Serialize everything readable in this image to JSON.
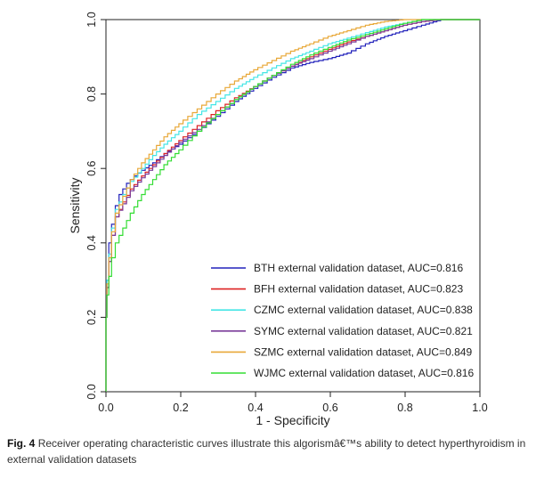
{
  "caption": {
    "label": "Fig. 4",
    "text": "Receiver operating characteristic curves illustrate this algorismâ€™s ability to detect hyperthyroidism in external validation datasets"
  },
  "chart_data": {
    "type": "line",
    "title": "",
    "xlabel": "1 - Specificity",
    "ylabel": "Sensitivity",
    "xlim": [
      0,
      1
    ],
    "ylim": [
      0,
      1
    ],
    "x_ticks": [
      "0.0",
      "0.2",
      "0.4",
      "0.6",
      "0.8",
      "1.0"
    ],
    "y_ticks": [
      "0.0",
      "0.2",
      "0.4",
      "0.6",
      "0.8",
      "1.0"
    ],
    "grid": false,
    "legend_position": "bottom-right",
    "diagonal": false,
    "series": [
      {
        "name": "BTH external validation dataset, AUC=0.816",
        "color": "#2222bb",
        "points": [
          [
            0,
            0
          ],
          [
            0,
            0.2
          ],
          [
            0.005,
            0.3
          ],
          [
            0.01,
            0.4
          ],
          [
            0.02,
            0.45
          ],
          [
            0.03,
            0.5
          ],
          [
            0.04,
            0.53
          ],
          [
            0.06,
            0.56
          ],
          [
            0.08,
            0.58
          ],
          [
            0.1,
            0.595
          ],
          [
            0.13,
            0.615
          ],
          [
            0.16,
            0.64
          ],
          [
            0.2,
            0.665
          ],
          [
            0.25,
            0.7
          ],
          [
            0.3,
            0.74
          ],
          [
            0.35,
            0.78
          ],
          [
            0.4,
            0.815
          ],
          [
            0.45,
            0.845
          ],
          [
            0.5,
            0.87
          ],
          [
            0.55,
            0.885
          ],
          [
            0.6,
            0.895
          ],
          [
            0.65,
            0.91
          ],
          [
            0.7,
            0.935
          ],
          [
            0.75,
            0.955
          ],
          [
            0.8,
            0.97
          ],
          [
            0.85,
            0.985
          ],
          [
            0.9,
            1.0
          ],
          [
            1.0,
            1.0
          ]
        ]
      },
      {
        "name": "BFH external validation dataset, AUC=0.823",
        "color": "#dd2222",
        "points": [
          [
            0,
            0
          ],
          [
            0,
            0.2
          ],
          [
            0.005,
            0.28
          ],
          [
            0.01,
            0.35
          ],
          [
            0.02,
            0.42
          ],
          [
            0.03,
            0.47
          ],
          [
            0.05,
            0.51
          ],
          [
            0.07,
            0.545
          ],
          [
            0.1,
            0.58
          ],
          [
            0.13,
            0.61
          ],
          [
            0.16,
            0.64
          ],
          [
            0.2,
            0.675
          ],
          [
            0.25,
            0.715
          ],
          [
            0.3,
            0.755
          ],
          [
            0.35,
            0.79
          ],
          [
            0.4,
            0.82
          ],
          [
            0.45,
            0.85
          ],
          [
            0.5,
            0.875
          ],
          [
            0.55,
            0.9
          ],
          [
            0.6,
            0.92
          ],
          [
            0.65,
            0.94
          ],
          [
            0.7,
            0.955
          ],
          [
            0.75,
            0.97
          ],
          [
            0.8,
            0.985
          ],
          [
            0.85,
            0.995
          ],
          [
            0.9,
            1.0
          ],
          [
            1.0,
            1.0
          ]
        ]
      },
      {
        "name": "CZMC external validation dataset, AUC=0.838",
        "color": "#44e5e5",
        "points": [
          [
            0,
            0
          ],
          [
            0,
            0.2
          ],
          [
            0.005,
            0.3
          ],
          [
            0.01,
            0.37
          ],
          [
            0.02,
            0.44
          ],
          [
            0.03,
            0.49
          ],
          [
            0.05,
            0.53
          ],
          [
            0.07,
            0.565
          ],
          [
            0.1,
            0.6
          ],
          [
            0.13,
            0.635
          ],
          [
            0.16,
            0.665
          ],
          [
            0.2,
            0.7
          ],
          [
            0.25,
            0.745
          ],
          [
            0.3,
            0.78
          ],
          [
            0.35,
            0.815
          ],
          [
            0.4,
            0.845
          ],
          [
            0.45,
            0.87
          ],
          [
            0.5,
            0.895
          ],
          [
            0.55,
            0.915
          ],
          [
            0.6,
            0.935
          ],
          [
            0.65,
            0.95
          ],
          [
            0.7,
            0.965
          ],
          [
            0.75,
            0.98
          ],
          [
            0.8,
            0.99
          ],
          [
            0.85,
            1.0
          ],
          [
            1.0,
            1.0
          ]
        ]
      },
      {
        "name": "SYMC external validation dataset, AUC=0.821",
        "color": "#7a3c9a",
        "points": [
          [
            0,
            0
          ],
          [
            0,
            0.2
          ],
          [
            0.005,
            0.28
          ],
          [
            0.01,
            0.35
          ],
          [
            0.02,
            0.42
          ],
          [
            0.03,
            0.47
          ],
          [
            0.05,
            0.505
          ],
          [
            0.07,
            0.54
          ],
          [
            0.1,
            0.575
          ],
          [
            0.13,
            0.605
          ],
          [
            0.16,
            0.635
          ],
          [
            0.2,
            0.67
          ],
          [
            0.25,
            0.705
          ],
          [
            0.3,
            0.745
          ],
          [
            0.35,
            0.785
          ],
          [
            0.4,
            0.82
          ],
          [
            0.45,
            0.85
          ],
          [
            0.5,
            0.875
          ],
          [
            0.55,
            0.895
          ],
          [
            0.6,
            0.915
          ],
          [
            0.65,
            0.935
          ],
          [
            0.7,
            0.955
          ],
          [
            0.75,
            0.97
          ],
          [
            0.8,
            0.985
          ],
          [
            0.85,
            0.995
          ],
          [
            0.9,
            1.0
          ],
          [
            1.0,
            1.0
          ]
        ]
      },
      {
        "name": "SZMC external validation dataset, AUC=0.849",
        "color": "#e8a838",
        "points": [
          [
            0,
            0
          ],
          [
            0,
            0.2
          ],
          [
            0.005,
            0.29
          ],
          [
            0.01,
            0.36
          ],
          [
            0.02,
            0.43
          ],
          [
            0.03,
            0.48
          ],
          [
            0.05,
            0.525
          ],
          [
            0.07,
            0.57
          ],
          [
            0.1,
            0.615
          ],
          [
            0.13,
            0.65
          ],
          [
            0.16,
            0.685
          ],
          [
            0.2,
            0.72
          ],
          [
            0.25,
            0.76
          ],
          [
            0.3,
            0.8
          ],
          [
            0.35,
            0.835
          ],
          [
            0.4,
            0.865
          ],
          [
            0.45,
            0.89
          ],
          [
            0.5,
            0.915
          ],
          [
            0.55,
            0.935
          ],
          [
            0.6,
            0.955
          ],
          [
            0.65,
            0.97
          ],
          [
            0.7,
            0.985
          ],
          [
            0.75,
            0.995
          ],
          [
            0.8,
            1.0
          ],
          [
            1.0,
            1.0
          ]
        ]
      },
      {
        "name": "WJMC external validation dataset, AUC=0.816",
        "color": "#33dd33",
        "points": [
          [
            0,
            0
          ],
          [
            0,
            0.2
          ],
          [
            0.005,
            0.26
          ],
          [
            0.01,
            0.31
          ],
          [
            0.02,
            0.36
          ],
          [
            0.03,
            0.4
          ],
          [
            0.05,
            0.44
          ],
          [
            0.07,
            0.48
          ],
          [
            0.1,
            0.53
          ],
          [
            0.13,
            0.57
          ],
          [
            0.16,
            0.61
          ],
          [
            0.2,
            0.65
          ],
          [
            0.25,
            0.7
          ],
          [
            0.3,
            0.745
          ],
          [
            0.35,
            0.785
          ],
          [
            0.4,
            0.82
          ],
          [
            0.45,
            0.85
          ],
          [
            0.5,
            0.88
          ],
          [
            0.55,
            0.905
          ],
          [
            0.6,
            0.925
          ],
          [
            0.65,
            0.945
          ],
          [
            0.7,
            0.96
          ],
          [
            0.75,
            0.975
          ],
          [
            0.8,
            0.99
          ],
          [
            0.85,
            1.0
          ],
          [
            1.0,
            1.0
          ]
        ]
      }
    ]
  }
}
